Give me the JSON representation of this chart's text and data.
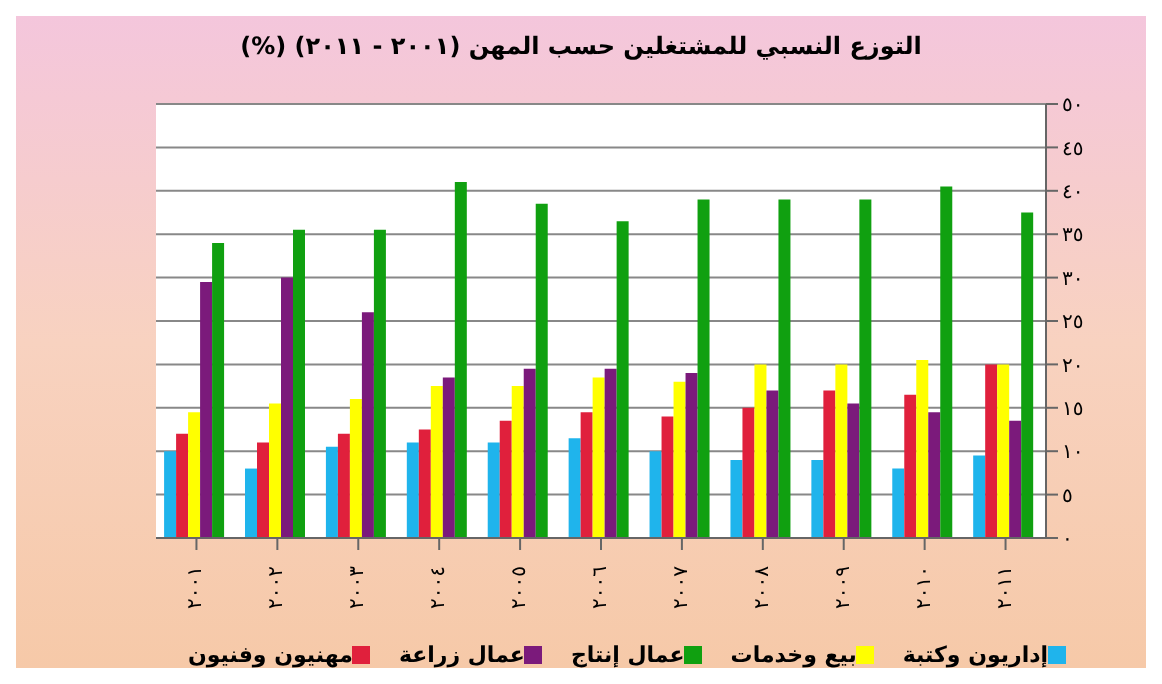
{
  "chart_data": {
    "type": "bar",
    "title": "التوزع النسبي للمشتغلين حسب المهن (٢٠٠١ - ٢٠١١) (%)",
    "categories": [
      "٢٠٠١",
      "٢٠٠٢",
      "٢٠٠٣",
      "٢٠٠٤",
      "٢٠٠٥",
      "٢٠٠٦",
      "٢٠٠٧",
      "٢٠٠٨",
      "٢٠٠٩",
      "٢٠١٠",
      "٢٠١١"
    ],
    "series": [
      {
        "name": "إداريون وكتبة",
        "color": "#1fb4ec",
        "values": [
          10,
          8,
          10.5,
          11,
          11,
          11.5,
          10,
          9,
          9,
          8,
          9.5
        ]
      },
      {
        "name": "مهنيون وفنيون",
        "color": "#e0203c",
        "values": [
          12,
          11,
          12,
          12.5,
          13.5,
          14.5,
          14,
          15,
          17,
          16.5,
          20
        ]
      },
      {
        "name": "بيع وخدمات",
        "color": "#ffff00",
        "values": [
          14.5,
          15.5,
          16,
          17.5,
          17.5,
          18.5,
          18,
          20,
          20,
          20.5,
          20
        ]
      },
      {
        "name": "عمال زراعة",
        "color": "#7b1a7b",
        "values": [
          29.5,
          30,
          26,
          18.5,
          19.5,
          19.5,
          19,
          17,
          15.5,
          14.5,
          13.5
        ]
      },
      {
        "name": "عمال إنتاج",
        "color": "#10a010",
        "values": [
          34,
          35.5,
          35.5,
          41,
          38.5,
          36.5,
          39,
          39,
          39,
          40.5,
          37.5
        ]
      }
    ],
    "ylim": [
      0,
      50
    ],
    "yticks": [
      {
        "value": 0,
        "label": "٠"
      },
      {
        "value": 5,
        "label": "٥"
      },
      {
        "value": 10,
        "label": "١٠"
      },
      {
        "value": 15,
        "label": "١٥"
      },
      {
        "value": 20,
        "label": "٢٠"
      },
      {
        "value": 25,
        "label": "٢٥"
      },
      {
        "value": 30,
        "label": "٣٠"
      },
      {
        "value": 35,
        "label": "٣٥"
      },
      {
        "value": 40,
        "label": "٤٠"
      },
      {
        "value": 45,
        "label": "٤٥"
      },
      {
        "value": 50,
        "label": "٥٠"
      }
    ],
    "grid": "y",
    "legend": "bottom"
  }
}
